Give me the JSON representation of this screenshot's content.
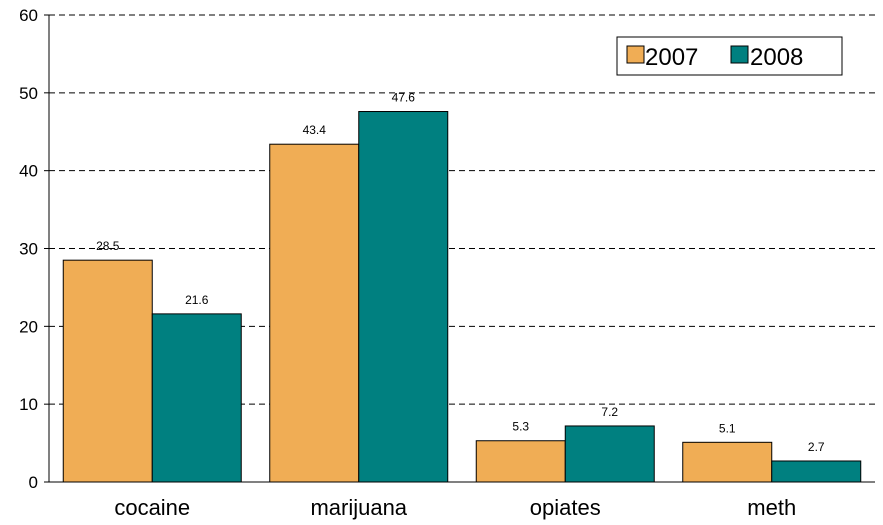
{
  "chart_data": {
    "type": "bar",
    "categories": [
      "cocaine",
      "marijuana",
      "opiates",
      "meth"
    ],
    "series": [
      {
        "name": "2007",
        "values": [
          28.5,
          43.4,
          5.3,
          5.1
        ]
      },
      {
        "name": "2008",
        "values": [
          21.6,
          47.6,
          7.2,
          2.7
        ]
      }
    ],
    "colors": [
      "#F0AD55",
      "#008080"
    ],
    "ylim": [
      0,
      60
    ],
    "yticks": [
      0,
      10,
      20,
      30,
      40,
      50,
      60
    ],
    "grid": true,
    "legend_position": "top-right"
  }
}
